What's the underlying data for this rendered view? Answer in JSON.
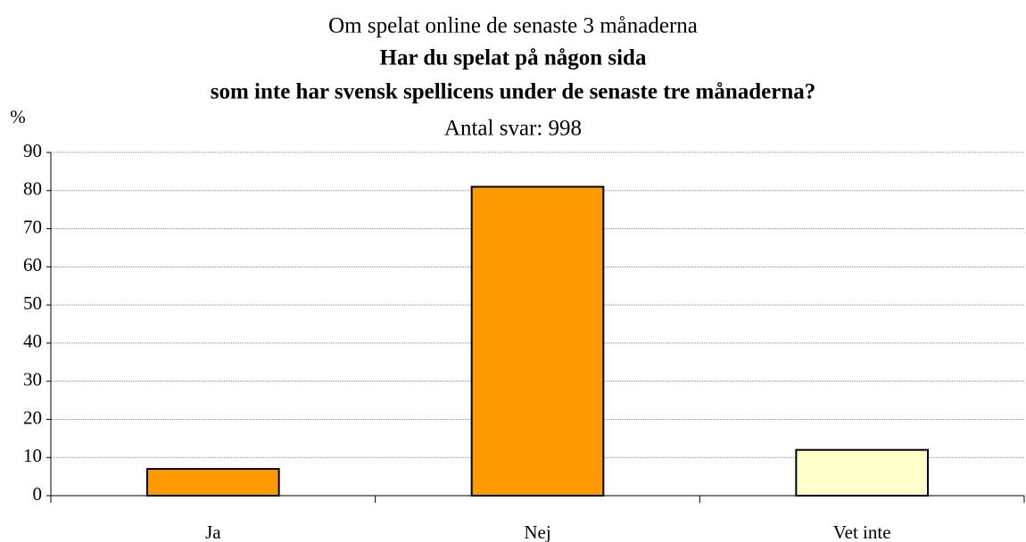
{
  "chart_data": {
    "type": "bar",
    "title": "Om spelat online de senaste 3 månaderna",
    "subtitle": [
      "Har du spelat på någon sida",
      "som inte har svensk spellicens under de senaste tre månaderna?"
    ],
    "note": "Antal svar: 998",
    "ylabel": "%",
    "categories": [
      "Ja",
      "Nej",
      "Vet inte"
    ],
    "values": [
      7,
      81,
      12
    ],
    "colors": [
      "#ff9900",
      "#ff9900",
      "#ffffcc"
    ],
    "ylim": [
      0,
      90
    ],
    "yticks": [
      0,
      10,
      20,
      30,
      40,
      50,
      60,
      70,
      80,
      90
    ],
    "grid": true
  }
}
